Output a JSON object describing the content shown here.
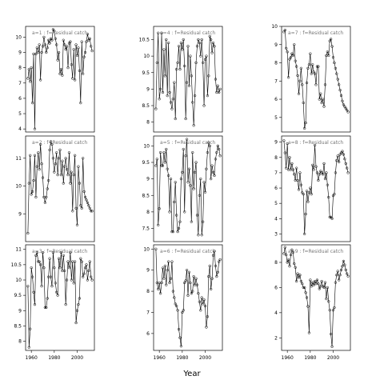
{
  "chart_data": {
    "type": "scatter",
    "xlabel": "Year",
    "x": [
      1957,
      1958,
      1959,
      1960,
      1961,
      1962,
      1963,
      1964,
      1965,
      1966,
      1967,
      1968,
      1969,
      1970,
      1971,
      1972,
      1973,
      1974,
      1975,
      1976,
      1977,
      1978,
      1979,
      1980,
      1981,
      1982,
      1983,
      1984,
      1985,
      1986,
      1987,
      1988,
      1989,
      1990,
      1991,
      1992,
      1993,
      1994,
      1995,
      1996,
      1997,
      1998,
      1999,
      2000,
      2001,
      2002,
      2003,
      2004,
      2005,
      2006,
      2007,
      2008,
      2009,
      2010,
      2011,
      2012,
      2013
    ],
    "panels": [
      {
        "title": "a=1 : f=Residual catch",
        "xlim": [
          1955,
          2015
        ],
        "ylim": [
          3.8,
          10.7
        ],
        "yticks": [
          4,
          5,
          6,
          7,
          8,
          9,
          10
        ],
        "xticks": [],
        "y": [
          7.3,
          7.9,
          7.1,
          8.0,
          5.7,
          8.9,
          4.0,
          8.9,
          9.3,
          9.0,
          9.5,
          7.2,
          9.0,
          9.4,
          10.0,
          9.5,
          9.0,
          9.3,
          9.8,
          9.6,
          9.9,
          9.8,
          10.5,
          10.4,
          9.9,
          9.5,
          8.5,
          9.0,
          7.6,
          7.9,
          7.5,
          9.8,
          9.5,
          9.2,
          9.4,
          8.0,
          9.6,
          9.7,
          8.2,
          7.3,
          9.2,
          7.2,
          9.5,
          8.8,
          9.3,
          7.8,
          5.7,
          9.7,
          7.6,
          8.7,
          9.0,
          9.7,
          10.2,
          9.8,
          9.9,
          9.4,
          9.1
        ]
      },
      {
        "title": "a=2 : f=Residual catch",
        "xlim": [
          1955,
          2015
        ],
        "ylim": [
          8.0,
          11.8
        ],
        "yticks": [
          9,
          10,
          11
        ],
        "xticks": [],
        "y": [
          8.3,
          10.1,
          11.1,
          9.7,
          9.8,
          10.2,
          11.1,
          9.6,
          10.7,
          11.2,
          10.6,
          11.5,
          10.8,
          10.3,
          9.6,
          9.4,
          9.6,
          9.9,
          10.2,
          11.3,
          11.6,
          11.5,
          11.0,
          10.5,
          10.8,
          11.2,
          10.4,
          11.0,
          11.3,
          10.4,
          10.9,
          10.1,
          10.7,
          11.0,
          10.6,
          10.4,
          11.2,
          10.1,
          10.5,
          9.1,
          10.4,
          11.1,
          9.2,
          8.6,
          10.7,
          10.1,
          9.3,
          9.2,
          11.0,
          9.8,
          9.6,
          9.5,
          9.4,
          9.3,
          9.2,
          9.1,
          9.1
        ]
      },
      {
        "title": "a=3 : f=Residual catch",
        "xlim": [
          1955,
          2015
        ],
        "ylim": [
          7.7,
          11.15
        ],
        "yticks": [
          8.0,
          8.5,
          9.0,
          9.5,
          10.0,
          10.5,
          11.0
        ],
        "xticks": [
          1960,
          1980,
          2000
        ],
        "y": [
          9.8,
          7.8,
          8.4,
          10.4,
          10.1,
          9.6,
          9.2,
          10.8,
          10.9,
          10.6,
          10.6,
          10.5,
          9.8,
          10.9,
          10.4,
          9.1,
          9.1,
          9.4,
          10.1,
          10.7,
          10.1,
          9.8,
          10.9,
          10.4,
          9.9,
          9.6,
          9.5,
          10.7,
          10.4,
          10.9,
          10.3,
          10.8,
          10.3,
          9.2,
          10.0,
          10.6,
          10.4,
          10.9,
          10.0,
          10.6,
          9.9,
          10.6,
          8.6,
          9.0,
          9.2,
          9.4,
          10.7,
          10.6,
          10.1,
          10.2,
          10.4,
          10.5,
          10.0,
          10.3,
          10.6,
          10.1,
          10.0
        ]
      },
      {
        "title": "a=4 : f=Residual catch",
        "xlim": [
          1955,
          2015
        ],
        "ylim": [
          7.7,
          10.9
        ],
        "yticks": [
          8.0,
          8.5,
          9.0,
          9.5,
          10.0,
          10.5
        ],
        "xticks": [],
        "y": [
          8.4,
          9.8,
          10.7,
          8.7,
          9.0,
          10.7,
          8.9,
          10.2,
          9.4,
          10.5,
          8.8,
          10.4,
          8.9,
          8.6,
          8.4,
          8.7,
          9.2,
          8.1,
          9.6,
          9.8,
          10.3,
          9.6,
          10.4,
          10.2,
          10.5,
          9.7,
          8.1,
          9.2,
          10.3,
          9.1,
          10.0,
          9.4,
          8.6,
          7.9,
          8.8,
          9.8,
          10.3,
          10.5,
          10.4,
          10.0,
          10.5,
          9.8,
          8.5,
          9.9,
          10.0,
          8.8,
          9.4,
          10.6,
          10.5,
          10.1,
          10.4,
          10.3,
          9.3,
          8.9,
          9.1,
          8.9,
          9.0
        ]
      },
      {
        "title": "a=5 : f=Residual catch",
        "xlim": [
          1955,
          2015
        ],
        "ylim": [
          7.1,
          10.3
        ],
        "yticks": [
          7.5,
          8.0,
          8.5,
          9.0,
          9.5,
          10.0
        ],
        "xticks": [],
        "y": [
          9.4,
          9.6,
          7.6,
          8.1,
          9.8,
          9.4,
          9.4,
          9.8,
          9.5,
          9.9,
          9.3,
          9.1,
          8.0,
          9.0,
          7.4,
          7.4,
          8.3,
          8.9,
          7.9,
          7.4,
          7.5,
          7.7,
          9.0,
          9.2,
          9.9,
          8.0,
          9.7,
          10.2,
          8.9,
          9.3,
          8.8,
          7.7,
          9.8,
          8.7,
          9.2,
          9.5,
          7.9,
          7.3,
          8.5,
          9.0,
          7.3,
          7.7,
          8.9,
          8.6,
          9.3,
          9.8,
          10.1,
          10.0,
          9.0,
          9.4,
          9.2,
          9.1,
          9.6,
          9.8,
          10.0,
          9.9,
          9.7
        ]
      },
      {
        "title": "a=6 : f=Residual catch",
        "xlim": [
          1955,
          2015
        ],
        "ylim": [
          5.2,
          10.2
        ],
        "yticks": [
          6,
          7,
          8,
          9,
          10
        ],
        "xticks": [
          1960,
          1980,
          2000
        ],
        "y": [
          10.0,
          8.4,
          8.1,
          8.4,
          7.9,
          8.4,
          9.1,
          8.6,
          9.2,
          8.3,
          9.0,
          9.4,
          8.4,
          8.6,
          9.4,
          8.0,
          7.7,
          7.4,
          7.3,
          7.1,
          6.2,
          5.8,
          5.4,
          7.0,
          7.1,
          8.4,
          8.5,
          9.0,
          7.8,
          8.9,
          8.4,
          7.9,
          8.0,
          8.7,
          8.3,
          8.6,
          8.3,
          7.9,
          7.5,
          7.1,
          7.7,
          7.4,
          7.6,
          7.3,
          6.3,
          6.8,
          8.7,
          9.2,
          8.1,
          8.6,
          9.7,
          9.9,
          9.2,
          8.7,
          8.9,
          9.4,
          9.5
        ]
      },
      {
        "title": "a=7 : f=Residual catch",
        "xlim": [
          1955,
          2015
        ],
        "ylim": [
          4.2,
          10.0
        ],
        "yticks": [
          5,
          6,
          7,
          8,
          9,
          10
        ],
        "xticks": [],
        "y": [
          9.7,
          9.8,
          8.8,
          8.6,
          7.2,
          8.2,
          8.3,
          8.5,
          8.4,
          9.0,
          8.1,
          7.8,
          7.3,
          6.3,
          7.0,
          7.7,
          6.8,
          5.8,
          4.4,
          4.7,
          6.9,
          7.7,
          7.9,
          8.5,
          7.4,
          7.9,
          7.5,
          7.4,
          6.8,
          7.8,
          7.8,
          6.0,
          6.3,
          5.8,
          6.0,
          5.6,
          6.8,
          8.4,
          8.6,
          8.4,
          9.2,
          9.3,
          8.9,
          8.3,
          8.0,
          7.7,
          7.4,
          7.1,
          6.8,
          6.5,
          6.2,
          5.9,
          5.7,
          5.6,
          5.5,
          5.4,
          5.3
        ]
      },
      {
        "title": "a=8 : f=Residual catch",
        "xlim": [
          1955,
          2015
        ],
        "ylim": [
          2.5,
          9.4
        ],
        "yticks": [
          3,
          4,
          5,
          6,
          7,
          8,
          9
        ],
        "xticks": [],
        "y": [
          9.1,
          8.3,
          7.3,
          8.9,
          7.2,
          8.0,
          7.2,
          7.6,
          7.2,
          6.9,
          6.5,
          7.3,
          6.5,
          5.9,
          7.0,
          6.2,
          5.7,
          5.6,
          3.0,
          4.3,
          5.8,
          5.1,
          5.7,
          6.0,
          5.6,
          7.5,
          7.2,
          8.8,
          7.4,
          7.0,
          6.5,
          6.9,
          7.1,
          7.0,
          6.9,
          7.6,
          6.6,
          7.0,
          6.2,
          5.4,
          4.1,
          4.1,
          4.0,
          5.5,
          5.6,
          7.0,
          7.8,
          8.1,
          7.7,
          8.2,
          8.3,
          8.4,
          8.2,
          7.9,
          7.6,
          7.3,
          7.0
        ]
      },
      {
        "title": "a=9 : f=Residual catch",
        "xlim": [
          1955,
          2015
        ],
        "ylim": [
          1.0,
          9.4
        ],
        "yticks": [
          2,
          4,
          6,
          8
        ],
        "xticks": [
          1960,
          1980,
          2000
        ],
        "y": [
          8.7,
          9.2,
          8.6,
          8.0,
          8.2,
          7.7,
          8.6,
          9.0,
          8.8,
          7.9,
          7.6,
          6.5,
          7.1,
          6.8,
          7.0,
          6.5,
          6.3,
          6.0,
          6.0,
          5.6,
          5.2,
          4.5,
          2.4,
          6.6,
          6.1,
          6.4,
          6.2,
          6.5,
          6.3,
          6.6,
          6.3,
          5.9,
          6.1,
          6.5,
          6.1,
          6.0,
          6.4,
          5.1,
          6.0,
          4.9,
          4.2,
          2.3,
          1.3,
          4.2,
          4.4,
          6.4,
          7.0,
          7.3,
          6.6,
          7.0,
          7.4,
          7.7,
          8.1,
          7.8,
          7.4,
          7.1,
          6.9
        ]
      }
    ]
  }
}
